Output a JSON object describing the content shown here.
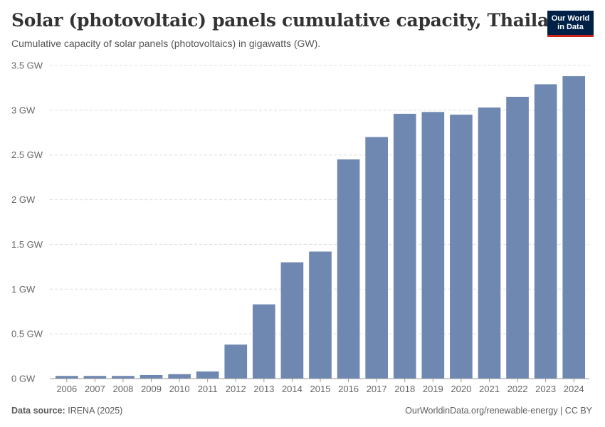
{
  "header": {
    "title": "Solar (photovoltaic) panels cumulative capacity, Thailand",
    "subtitle": "Cumulative capacity of solar panels (photovoltaics) in gigawatts (GW)."
  },
  "logo": {
    "line1": "Our World",
    "line2": "in Data"
  },
  "footer": {
    "source_label": "Data source:",
    "source_value": "IRENA (2025)",
    "attribution": "OurWorldinData.org/renewable-energy | CC BY"
  },
  "colors": {
    "bar": "#6f88b1",
    "grid": "#dddddd",
    "axis": "#999999",
    "brand": "#002147",
    "brand_accent": "#ce261e"
  },
  "chart_data": {
    "type": "bar",
    "title": "Solar (photovoltaic) panels cumulative capacity, Thailand",
    "xlabel": "",
    "ylabel": "",
    "unit": "GW",
    "ylim": [
      0,
      3.5
    ],
    "yticks": [
      0,
      0.5,
      1,
      1.5,
      2,
      2.5,
      3,
      3.5
    ],
    "ytick_labels": [
      "0 GW",
      "0.5 GW",
      "1 GW",
      "1.5 GW",
      "2 GW",
      "2.5 GW",
      "3 GW",
      "3.5 GW"
    ],
    "grid": true,
    "categories": [
      "2006",
      "2007",
      "2008",
      "2009",
      "2010",
      "2011",
      "2012",
      "2013",
      "2014",
      "2015",
      "2016",
      "2017",
      "2018",
      "2019",
      "2020",
      "2021",
      "2022",
      "2023",
      "2024"
    ],
    "values": [
      0.03,
      0.03,
      0.03,
      0.04,
      0.05,
      0.08,
      0.38,
      0.83,
      1.3,
      1.42,
      2.45,
      2.7,
      2.96,
      2.98,
      2.95,
      3.03,
      3.15,
      3.29,
      3.38
    ]
  }
}
